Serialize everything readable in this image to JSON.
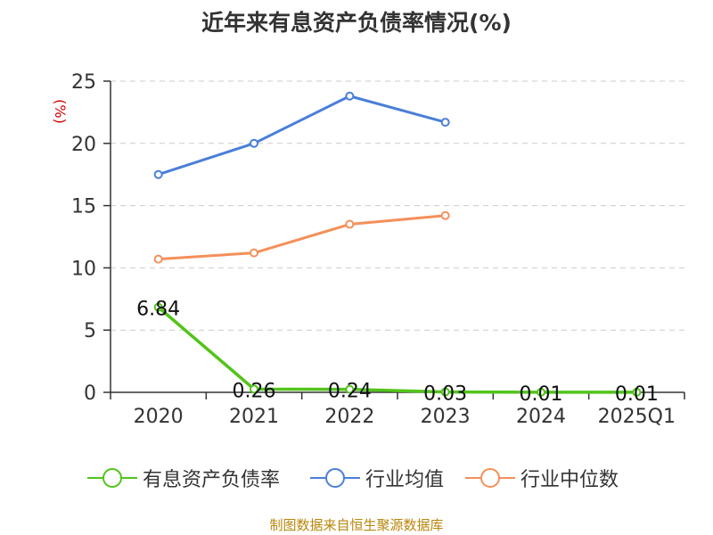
{
  "chart_data": {
    "type": "line",
    "title": "近年来有息资产负债率情况(%)",
    "ylabel": "(%)",
    "categories": [
      "2020",
      "2021",
      "2022",
      "2023",
      "2024",
      "2025Q1"
    ],
    "ylim": [
      0,
      25
    ],
    "yticks": [
      0,
      5,
      10,
      15,
      20,
      25
    ],
    "grid": true,
    "legend_position": "bottom",
    "series": [
      {
        "name": "有息资产负债率",
        "color": "#52c41a",
        "values": [
          6.84,
          0.26,
          0.24,
          0.03,
          0.01,
          0.01
        ],
        "labels": [
          "6.84",
          "0.26",
          "0.24",
          "0.03",
          "0.01",
          "0.01"
        ]
      },
      {
        "name": "行业均值",
        "color": "#4a7fd8",
        "values": [
          17.5,
          20.0,
          23.8,
          21.7,
          null,
          null
        ]
      },
      {
        "name": "行业中位数",
        "color": "#f4905a",
        "values": [
          10.7,
          11.2,
          13.5,
          14.2,
          null,
          null
        ]
      }
    ]
  },
  "source": "制图数据来自恒生聚源数据库"
}
